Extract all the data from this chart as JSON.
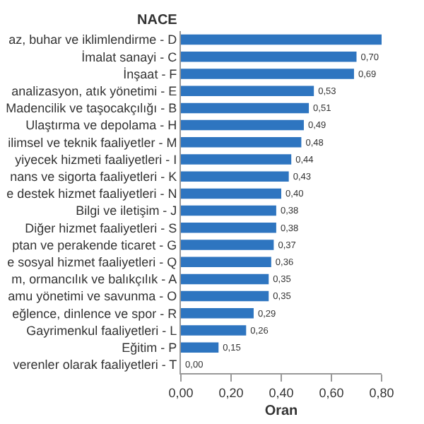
{
  "chart_data": {
    "type": "bar",
    "orientation": "horizontal",
    "ylabel": "NACE",
    "xlabel": "Oran",
    "categories": [
      "az, buhar ve iklimlendirme - D",
      "İmalat sanayi - C",
      "İnşaat - F",
      "analizasyon, atık yönetimi - E",
      "Madencilik ve taşocakçılığı - B",
      "Ulaştırma ve depolama - H",
      "ilimsel ve teknik faaliyetler - M",
      "yiyecek hizmeti faaliyetleri - I",
      "nans ve sigorta faaliyetleri - K",
      "e destek hizmet faaliyetleri - N",
      "Bilgi ve iletişim - J",
      "Diğer hizmet faaliyetleri - S",
      "ptan ve perakende ticaret - G",
      "e sosyal hizmet faaliyetleri - Q",
      "m, ormancılık ve balıkçılık - A",
      "amu yönetimi ve savunma - O",
      "eğlence, dinlence ve spor - R",
      "Gayrimenkul faaliyetleri - L",
      "Eğitim - P",
      "verenler olarak faaliyetleri - T"
    ],
    "values": [
      0.8,
      0.7,
      0.69,
      0.53,
      0.51,
      0.49,
      0.48,
      0.44,
      0.43,
      0.4,
      0.38,
      0.38,
      0.37,
      0.36,
      0.35,
      0.35,
      0.29,
      0.26,
      0.15,
      0.0
    ],
    "value_labels": [
      null,
      "0,70",
      "0,69",
      "0,53",
      "0,51",
      "0,49",
      "0,48",
      "0,44",
      "0,43",
      "0,40",
      "0,38",
      "0,38",
      "0,37",
      "0,36",
      "0,35",
      "0,35",
      "0,29",
      "0,26",
      "0,15",
      "0,00"
    ],
    "color": "#2e75c0",
    "xlim": [
      0,
      0.8
    ],
    "xticks": [
      {
        "value": 0,
        "label": "0,00"
      },
      {
        "value": 0.2,
        "label": "0,20"
      },
      {
        "value": 0.4,
        "label": "0,40"
      },
      {
        "value": 0.6,
        "label": "0,60"
      },
      {
        "value": 0.8,
        "label": "0,80"
      }
    ]
  }
}
